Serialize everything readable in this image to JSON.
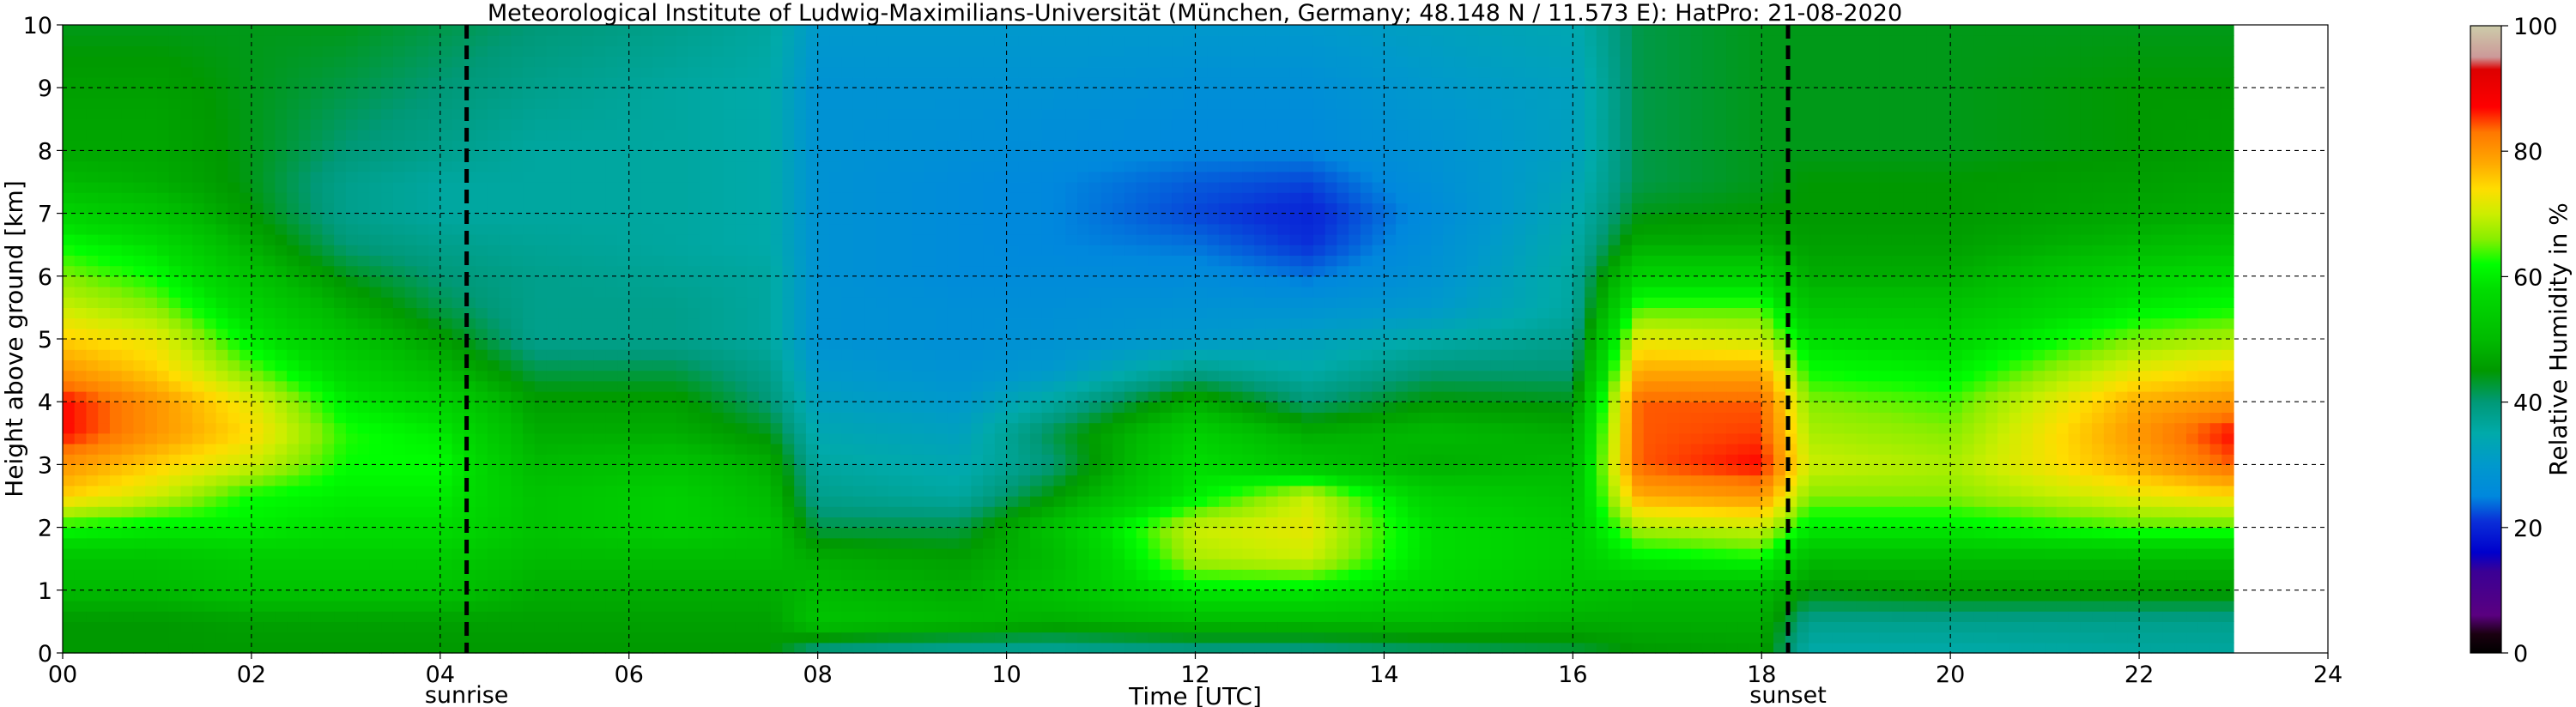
{
  "chart_data": {
    "type": "heatmap",
    "title": "Meteorological Institute of Ludwig-Maximilians-Universität (München, Germany; 48.148 N / 11.573 E):    HatPro: 21-08-2020",
    "xlabel": "Time [UTC]",
    "ylabel": "Height above ground [km]",
    "xlim": [
      0,
      24
    ],
    "ylim": [
      0,
      10
    ],
    "x_ticks": [
      "00",
      "02",
      "04",
      "06",
      "08",
      "10",
      "12",
      "14",
      "16",
      "18",
      "20",
      "22",
      "24"
    ],
    "y_ticks": [
      "0",
      "1",
      "2",
      "3",
      "4",
      "5",
      "6",
      "7",
      "8",
      "9",
      "10"
    ],
    "data_end_hour": 23,
    "grid": true,
    "markers": [
      {
        "label": "sunrise",
        "x": 4.28
      },
      {
        "label": "sunset",
        "x": 18.28
      }
    ],
    "colorbar": {
      "label": "Relative Humidity in %",
      "range": [
        0,
        100
      ],
      "ticks": [
        "0",
        "20",
        "40",
        "60",
        "80",
        "100"
      ],
      "stops": [
        {
          "v": 0,
          "color": "#000000"
        },
        {
          "v": 3,
          "color": "#1a0010"
        },
        {
          "v": 6,
          "color": "#5a0080"
        },
        {
          "v": 13,
          "color": "#3a0095"
        },
        {
          "v": 16,
          "color": "#0000cc"
        },
        {
          "v": 21,
          "color": "#0a2fd8"
        },
        {
          "v": 25,
          "color": "#0088dd"
        },
        {
          "v": 30,
          "color": "#0099cc"
        },
        {
          "v": 35,
          "color": "#00aaaa"
        },
        {
          "v": 40,
          "color": "#009977"
        },
        {
          "v": 45,
          "color": "#009900"
        },
        {
          "v": 50,
          "color": "#00bb00"
        },
        {
          "v": 58,
          "color": "#00dd00"
        },
        {
          "v": 62,
          "color": "#00ff00"
        },
        {
          "v": 66,
          "color": "#88ee00"
        },
        {
          "v": 70,
          "color": "#ccee00"
        },
        {
          "v": 74,
          "color": "#ffdd00"
        },
        {
          "v": 78,
          "color": "#ffaa00"
        },
        {
          "v": 83,
          "color": "#ff7700"
        },
        {
          "v": 87,
          "color": "#ff0000"
        },
        {
          "v": 93,
          "color": "#dd0000"
        },
        {
          "v": 95,
          "color": "#cc9999"
        },
        {
          "v": 100,
          "color": "#ccccaa"
        }
      ]
    },
    "rh_field": {
      "description_of_units": "relative humidity %",
      "heights_km": [
        0,
        0.5,
        1,
        1.5,
        2,
        2.5,
        3,
        3.5,
        4,
        4.5,
        5,
        5.5,
        6,
        6.5,
        7,
        7.5,
        8,
        9,
        10
      ],
      "time_columns": [
        {
          "t": 0,
          "rh": [
            45,
            45,
            50,
            52,
            62,
            75,
            80,
            87,
            87,
            80,
            75,
            70,
            66,
            62,
            56,
            50,
            47,
            46,
            44
          ]
        },
        {
          "t": 1,
          "rh": [
            45,
            45,
            50,
            52,
            60,
            70,
            75,
            80,
            80,
            75,
            72,
            66,
            62,
            58,
            52,
            48,
            47,
            46,
            44
          ]
        },
        {
          "t": 2,
          "rh": [
            45,
            46,
            52,
            54,
            60,
            62,
            70,
            74,
            72,
            65,
            60,
            56,
            52,
            48,
            45,
            44,
            44,
            44,
            44
          ]
        },
        {
          "t": 3,
          "rh": [
            45,
            46,
            52,
            54,
            58,
            60,
            62,
            63,
            60,
            56,
            52,
            48,
            44,
            40,
            38,
            38,
            40,
            42,
            44
          ]
        },
        {
          "t": 4,
          "rh": [
            45,
            46,
            52,
            54,
            58,
            60,
            62,
            60,
            56,
            50,
            46,
            42,
            40,
            38,
            36,
            36,
            38,
            40,
            42
          ]
        },
        {
          "t": 5,
          "rh": [
            45,
            46,
            48,
            50,
            52,
            52,
            50,
            48,
            46,
            42,
            38,
            38,
            38,
            37,
            36,
            36,
            36,
            38,
            40
          ]
        },
        {
          "t": 6.5,
          "rh": [
            45,
            46,
            48,
            50,
            55,
            55,
            52,
            48,
            46,
            42,
            38,
            38,
            37,
            36,
            36,
            36,
            36,
            36,
            38
          ]
        },
        {
          "t": 7.5,
          "rh": [
            45,
            46,
            48,
            50,
            52,
            50,
            48,
            44,
            40,
            38,
            36,
            36,
            36,
            35,
            35,
            35,
            35,
            35,
            36
          ]
        },
        {
          "t": 8,
          "rh": [
            38,
            52,
            50,
            48,
            42,
            38,
            36,
            34,
            32,
            30,
            28,
            28,
            28,
            28,
            28,
            28,
            28,
            28,
            30
          ]
        },
        {
          "t": 9.5,
          "rh": [
            36,
            50,
            48,
            46,
            42,
            36,
            34,
            32,
            30,
            28,
            27,
            27,
            26,
            26,
            26,
            26,
            27,
            28,
            30
          ]
        },
        {
          "t": 10.5,
          "rh": [
            36,
            48,
            52,
            50,
            52,
            45,
            40,
            42,
            36,
            30,
            28,
            27,
            26,
            25,
            25,
            25,
            26,
            28,
            30
          ]
        },
        {
          "t": 12,
          "rh": [
            38,
            50,
            60,
            68,
            70,
            60,
            58,
            55,
            48,
            38,
            30,
            28,
            26,
            24,
            22,
            23,
            25,
            27,
            30
          ]
        },
        {
          "t": 13.2,
          "rh": [
            38,
            50,
            60,
            70,
            72,
            70,
            52,
            48,
            40,
            35,
            32,
            28,
            24,
            21,
            20,
            22,
            25,
            27,
            30
          ]
        },
        {
          "t": 14.5,
          "rh": [
            40,
            50,
            56,
            58,
            58,
            55,
            48,
            50,
            45,
            40,
            35,
            30,
            28,
            27,
            26,
            27,
            28,
            30,
            32
          ]
        },
        {
          "t": 16,
          "rh": [
            42,
            48,
            52,
            54,
            54,
            52,
            50,
            48,
            44,
            40,
            38,
            36,
            36,
            35,
            34,
            33,
            32,
            32,
            34
          ]
        },
        {
          "t": 16.7,
          "rh": [
            45,
            48,
            50,
            60,
            68,
            78,
            84,
            84,
            84,
            78,
            72,
            64,
            56,
            48,
            44,
            42,
            42,
            42,
            42
          ]
        },
        {
          "t": 18,
          "rh": [
            46,
            48,
            50,
            62,
            70,
            80,
            87,
            85,
            84,
            78,
            70,
            64,
            56,
            48,
            45,
            44,
            44,
            44,
            44
          ]
        },
        {
          "t": 18.5,
          "rh": [
            35,
            38,
            45,
            50,
            60,
            66,
            70,
            68,
            66,
            62,
            58,
            52,
            48,
            46,
            45,
            45,
            44,
            44,
            44
          ]
        },
        {
          "t": 20,
          "rh": [
            35,
            38,
            46,
            50,
            60,
            66,
            68,
            66,
            64,
            60,
            56,
            52,
            48,
            46,
            45,
            45,
            44,
            44,
            44
          ]
        },
        {
          "t": 22,
          "rh": [
            36,
            38,
            46,
            50,
            64,
            72,
            78,
            80,
            78,
            72,
            66,
            60,
            56,
            50,
            47,
            46,
            45,
            45,
            44
          ]
        },
        {
          "t": 23,
          "rh": [
            36,
            38,
            46,
            50,
            64,
            74,
            84,
            87,
            80,
            75,
            68,
            62,
            58,
            52,
            48,
            47,
            46,
            45,
            44
          ]
        }
      ]
    }
  }
}
